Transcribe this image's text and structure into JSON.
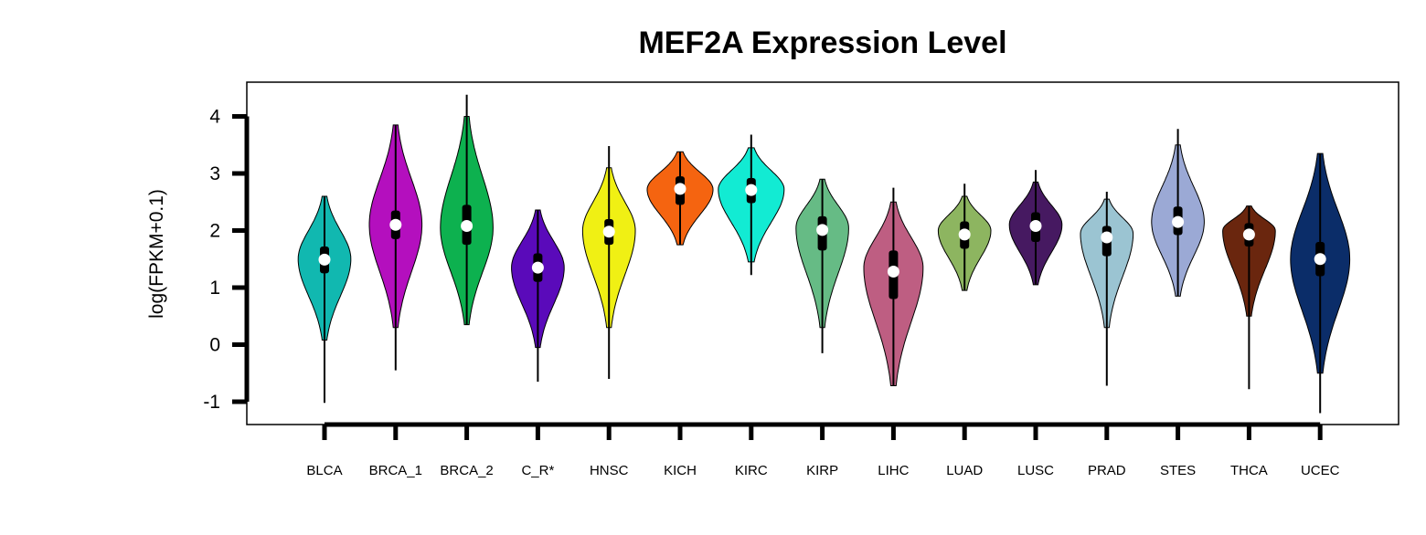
{
  "chart_data": {
    "type": "violin",
    "title": "MEF2A Expression Level",
    "ylabel": "log(FPKM+0.1)",
    "xlabel": "",
    "ylim": [
      -1,
      4
    ],
    "yticks": [
      "-1",
      "0",
      "1",
      "2",
      "3",
      "4"
    ],
    "grid": false,
    "legend": "none",
    "categories": [
      "BLCA",
      "BRCA_1",
      "BRCA_2",
      "C_R*",
      "HNSC",
      "KICH",
      "KIRC",
      "KIRP",
      "LIHC",
      "LUAD",
      "LUSC",
      "PRAD",
      "STES",
      "THCA",
      "UCEC"
    ],
    "series": [
      {
        "color": "#11B8B0",
        "min": -1.02,
        "q1": 1.25,
        "median": 1.49,
        "q3": 1.72,
        "max": 2.6,
        "lower": 0.08,
        "upper": 2.6,
        "mode": 1.5,
        "width": 0.8
      },
      {
        "color": "#B40FBE",
        "min": -0.45,
        "q1": 1.85,
        "median": 2.1,
        "q3": 2.35,
        "max": 3.85,
        "lower": 0.3,
        "upper": 3.85,
        "mode": 2.1,
        "width": 0.8
      },
      {
        "color": "#0DB14F",
        "min": 0.35,
        "q1": 1.75,
        "median": 2.08,
        "q3": 2.45,
        "max": 4.38,
        "lower": 0.35,
        "upper": 4.0,
        "mode": 2.05,
        "width": 0.8
      },
      {
        "color": "#5A0ABA",
        "min": -0.65,
        "q1": 1.1,
        "median": 1.35,
        "q3": 1.6,
        "max": 2.36,
        "lower": -0.05,
        "upper": 2.36,
        "mode": 1.35,
        "width": 0.8
      },
      {
        "color": "#F0F014",
        "min": -0.6,
        "q1": 1.75,
        "median": 1.98,
        "q3": 2.2,
        "max": 3.48,
        "lower": 0.3,
        "upper": 3.1,
        "mode": 2.0,
        "width": 0.8
      },
      {
        "color": "#F56410",
        "min": 1.75,
        "q1": 2.45,
        "median": 2.73,
        "q3": 2.95,
        "max": 3.38,
        "lower": 1.75,
        "upper": 3.38,
        "mode": 2.72,
        "width": 1.0
      },
      {
        "color": "#12EBD3",
        "min": 1.22,
        "q1": 2.48,
        "median": 2.71,
        "q3": 2.92,
        "max": 3.68,
        "lower": 1.45,
        "upper": 3.45,
        "mode": 2.72,
        "width": 1.0
      },
      {
        "color": "#66BB85",
        "min": -0.15,
        "q1": 1.65,
        "median": 2.01,
        "q3": 2.25,
        "max": 2.9,
        "lower": 0.3,
        "upper": 2.9,
        "mode": 2.05,
        "width": 0.8
      },
      {
        "color": "#BE5E82",
        "min": -0.72,
        "q1": 0.8,
        "median": 1.28,
        "q3": 1.65,
        "max": 2.75,
        "lower": -0.72,
        "upper": 2.5,
        "mode": 1.35,
        "width": 0.9
      },
      {
        "color": "#8DB560",
        "min": 0.95,
        "q1": 1.68,
        "median": 1.93,
        "q3": 2.16,
        "max": 2.82,
        "lower": 0.95,
        "upper": 2.6,
        "mode": 2.0,
        "width": 0.8
      },
      {
        "color": "#461961",
        "min": 1.05,
        "q1": 1.8,
        "median": 2.08,
        "q3": 2.32,
        "max": 3.06,
        "lower": 1.05,
        "upper": 2.85,
        "mode": 2.1,
        "width": 0.8
      },
      {
        "color": "#9BC4D2",
        "min": -0.72,
        "q1": 1.55,
        "median": 1.88,
        "q3": 2.08,
        "max": 2.68,
        "lower": 0.3,
        "upper": 2.55,
        "mode": 1.95,
        "width": 0.8
      },
      {
        "color": "#9BA9D5",
        "min": 0.85,
        "q1": 1.92,
        "median": 2.15,
        "q3": 2.42,
        "max": 3.78,
        "lower": 0.85,
        "upper": 3.5,
        "mode": 2.15,
        "width": 0.8
      },
      {
        "color": "#6A260E",
        "min": -0.78,
        "q1": 1.72,
        "median": 1.93,
        "q3": 2.13,
        "max": 2.43,
        "lower": 0.5,
        "upper": 2.43,
        "mode": 2.0,
        "width": 0.8
      },
      {
        "color": "#0B2D69",
        "min": -1.2,
        "q1": 1.2,
        "median": 1.5,
        "q3": 1.8,
        "max": 3.35,
        "lower": -0.5,
        "upper": 3.35,
        "mode": 1.5,
        "width": 0.9
      }
    ]
  }
}
